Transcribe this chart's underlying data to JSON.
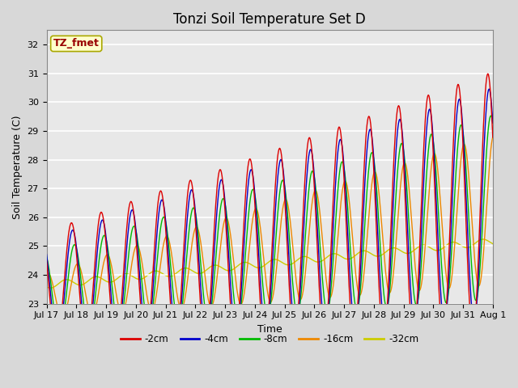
{
  "title": "Tonzi Soil Temperature Set D",
  "xlabel": "Time",
  "ylabel": "Soil Temperature (C)",
  "annotation": "TZ_fmet",
  "ylim": [
    23.0,
    32.5
  ],
  "yticks": [
    23.0,
    24.0,
    25.0,
    26.0,
    27.0,
    28.0,
    29.0,
    30.0,
    31.0,
    32.0
  ],
  "xtick_labels": [
    "Jul 17",
    "Jul 18",
    "Jul 19",
    "Jul 20",
    "Jul 21",
    "Jul 22",
    "Jul 23",
    "Jul 24",
    "Jul 25",
    "Jul 26",
    "Jul 27",
    "Jul 28",
    "Jul 29",
    "Jul 30",
    "Jul 31",
    "Aug 1"
  ],
  "line_colors": {
    "-2cm": "#dd0000",
    "-4cm": "#0000cc",
    "-8cm": "#00bb00",
    "-16cm": "#ee8800",
    "-32cm": "#cccc00"
  },
  "legend_order": [
    "-2cm",
    "-4cm",
    "-8cm",
    "-16cm",
    "-32cm"
  ],
  "bg_color": "#d8d8d8",
  "plot_bg_color": "#e8e8e8",
  "title_fontsize": 12,
  "axis_label_fontsize": 9,
  "tick_fontsize": 8,
  "n_points": 721
}
